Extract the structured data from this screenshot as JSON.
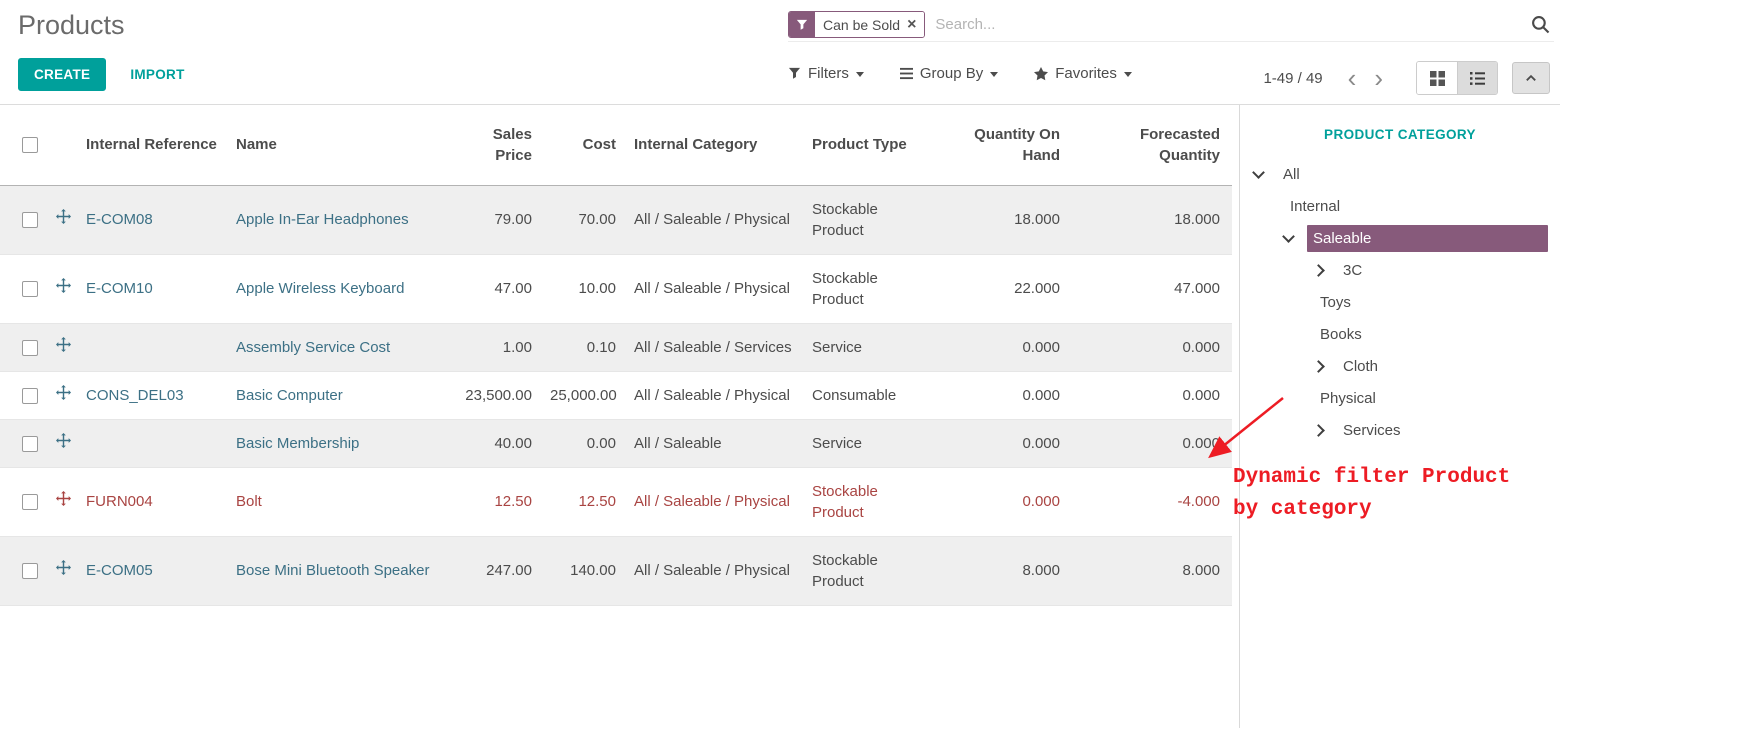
{
  "page_title": "Products",
  "search": {
    "facet_label": "Can be Sold",
    "remove_glyph": "×",
    "placeholder": "Search..."
  },
  "toolbar": {
    "create": "CREATE",
    "import": "IMPORT",
    "filters": "Filters",
    "group_by": "Group By",
    "favorites": "Favorites"
  },
  "pager": {
    "range": "1-49 / 49",
    "prev": "‹",
    "next": "›"
  },
  "table": {
    "columns": [
      {
        "label": "Internal Reference",
        "align": "left"
      },
      {
        "label": "Name",
        "align": "left"
      },
      {
        "label": "Sales Price",
        "align": "right"
      },
      {
        "label": "Cost",
        "align": "right"
      },
      {
        "label": "Internal Category",
        "align": "left"
      },
      {
        "label": "Product Type",
        "align": "left"
      },
      {
        "label": "Quantity On Hand",
        "align": "right"
      },
      {
        "label": "Forecasted Quantity",
        "align": "right"
      }
    ],
    "rows": [
      {
        "ref": "E-COM08",
        "name": "Apple In-Ear Headphones",
        "sales_price": "79.00",
        "cost": "70.00",
        "category": "All / Saleable / Physical",
        "type": "Stockable Product",
        "qty_on_hand": "18.000",
        "forecasted": "18.000",
        "danger": false
      },
      {
        "ref": "E-COM10",
        "name": "Apple Wireless Keyboard",
        "sales_price": "47.00",
        "cost": "10.00",
        "category": "All / Saleable / Physical",
        "type": "Stockable Product",
        "qty_on_hand": "22.000",
        "forecasted": "47.000",
        "danger": false
      },
      {
        "ref": "",
        "name": "Assembly Service Cost",
        "sales_price": "1.00",
        "cost": "0.10",
        "category": "All / Saleable / Services",
        "type": "Service",
        "qty_on_hand": "0.000",
        "forecasted": "0.000",
        "danger": false
      },
      {
        "ref": "CONS_DEL03",
        "name": "Basic Computer",
        "sales_price": "23,500.00",
        "cost": "25,000.00",
        "category": "All / Saleable / Physical",
        "type": "Consumable",
        "qty_on_hand": "0.000",
        "forecasted": "0.000",
        "danger": false
      },
      {
        "ref": "",
        "name": "Basic Membership",
        "sales_price": "40.00",
        "cost": "0.00",
        "category": "All / Saleable",
        "type": "Service",
        "qty_on_hand": "0.000",
        "forecasted": "0.000",
        "danger": false
      },
      {
        "ref": "FURN004",
        "name": "Bolt",
        "sales_price": "12.50",
        "cost": "12.50",
        "category": "All / Saleable / Physical",
        "type": "Stockable Product",
        "qty_on_hand": "0.000",
        "forecasted": "-4.000",
        "danger": true
      },
      {
        "ref": "E-COM05",
        "name": "Bose Mini Bluetooth Speaker",
        "sales_price": "247.00",
        "cost": "140.00",
        "category": "All / Saleable / Physical",
        "type": "Stockable Product",
        "qty_on_hand": "8.000",
        "forecasted": "8.000",
        "danger": false
      }
    ]
  },
  "sidebar": {
    "title": "PRODUCT CATEGORY",
    "items": [
      {
        "label": "All",
        "level": 0,
        "expander": "down",
        "selected": false
      },
      {
        "label": "Internal",
        "level": 1,
        "expander": "none",
        "selected": false
      },
      {
        "label": "Saleable",
        "level": 1,
        "expander": "down",
        "selected": true
      },
      {
        "label": "3C",
        "level": 2,
        "expander": "right",
        "selected": false
      },
      {
        "label": "Toys",
        "level": 2,
        "expander": "none",
        "selected": false
      },
      {
        "label": "Books",
        "level": 2,
        "expander": "none",
        "selected": false
      },
      {
        "label": "Cloth",
        "level": 2,
        "expander": "right",
        "selected": false
      },
      {
        "label": "Physical",
        "level": 2,
        "expander": "none",
        "selected": false
      },
      {
        "label": "Services",
        "level": 2,
        "expander": "right",
        "selected": false
      }
    ]
  },
  "annotation": {
    "text": "Dynamic filter Product by category",
    "color": "#ed1c24"
  },
  "colors": {
    "accent": "#00a09b",
    "facet_purple": "#875a7b",
    "danger": "#a94442",
    "selected_bg": "#875a7b"
  }
}
